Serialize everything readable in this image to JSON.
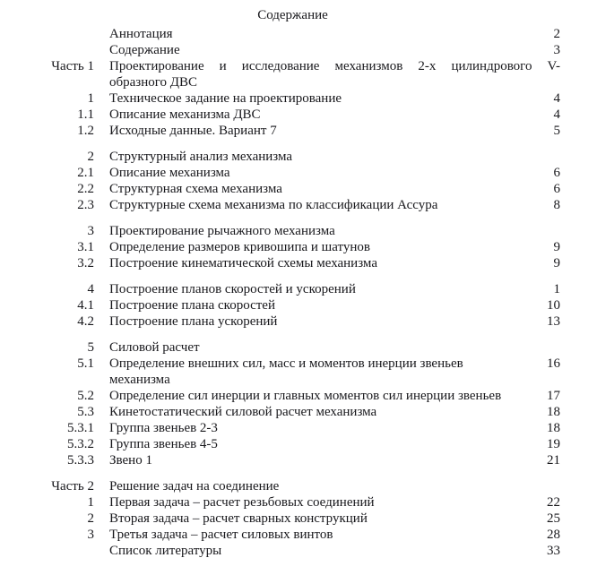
{
  "page": {
    "title": "Содержание",
    "colors": {
      "background": "#ffffff",
      "text": "#18181c"
    },
    "toc_sections": [
      {
        "rows": [
          {
            "num": "",
            "text": "Аннотация",
            "page": "2"
          },
          {
            "num": "",
            "text": "Содержание",
            "page": "3"
          },
          {
            "num": "Часть 1",
            "lines": [
              "Проектирование и исследование механизмов 2-х цилиндрового V-",
              "образного ДВС"
            ],
            "justify": true,
            "page": ""
          },
          {
            "num": "1",
            "text": "Техническое задание на проектирование",
            "page": "4"
          },
          {
            "num": "1.1",
            "text": "Описание механизма ДВС",
            "page": "4"
          },
          {
            "num": "1.2",
            "text": "Исходные данные. Вариант 7",
            "page": "5"
          }
        ]
      },
      {
        "rows": [
          {
            "num": "2",
            "text": "Структурный анализ механизма",
            "page": ""
          },
          {
            "num": "2.1",
            "text": "Описание механизма",
            "page": "6"
          },
          {
            "num": "2.2",
            "text": "Структурная схема механизма",
            "page": "6"
          },
          {
            "num": "2.3",
            "text": "Структурные схема механизма по классификации Ассура",
            "page": "8"
          }
        ]
      },
      {
        "rows": [
          {
            "num": "3",
            "text": "Проектирование рычажного механизма",
            "page": ""
          },
          {
            "num": "3.1",
            "text": "Определение размеров кривошипа и шатунов",
            "page": "9"
          },
          {
            "num": "3.2",
            "text": "Построение кинематической схемы механизма",
            "page": "9"
          }
        ]
      },
      {
        "rows": [
          {
            "num": "4",
            "text": "Построение планов скоростей и ускорений",
            "page": "1"
          },
          {
            "num": "4.1",
            "text": "Построение плана скоростей",
            "page": "10"
          },
          {
            "num": "4.2",
            "text": "Построение плана ускорений",
            "page": "13"
          }
        ]
      },
      {
        "rows": [
          {
            "num": "5",
            "text": "Силовой расчет",
            "page": ""
          },
          {
            "num": "5.1",
            "lines": [
              "Определение внешних сил, масс и моментов инерции звеньев",
              "механизма"
            ],
            "page": "16"
          },
          {
            "num": "5.2",
            "text": "Определение сил инерции и главных моментов сил инерции звеньев",
            "page": "17"
          },
          {
            "num": "5.3",
            "text": "Кинетостатический силовой расчет механизма",
            "page": "18"
          },
          {
            "num": "5.3.1",
            "text": "Группа звеньев 2-3",
            "page": "18"
          },
          {
            "num": "5.3.2",
            "text": "Группа звеньев 4-5",
            "page": "19"
          },
          {
            "num": "5.3.3",
            "text": "Звено 1",
            "page": "21"
          }
        ]
      },
      {
        "rows": [
          {
            "num": "Часть 2",
            "text": "Решение задач на соединение",
            "page": ""
          },
          {
            "num": "1",
            "text": "Первая задача – расчет резьбовых соединений",
            "page": "22"
          },
          {
            "num": "2",
            "text": "Вторая задача – расчет сварных конструкций",
            "page": "25"
          },
          {
            "num": "3",
            "text": "Третья задача – расчет силовых винтов",
            "page": "28"
          },
          {
            "num": "",
            "text": "Список литературы",
            "page": "33"
          }
        ]
      }
    ]
  }
}
